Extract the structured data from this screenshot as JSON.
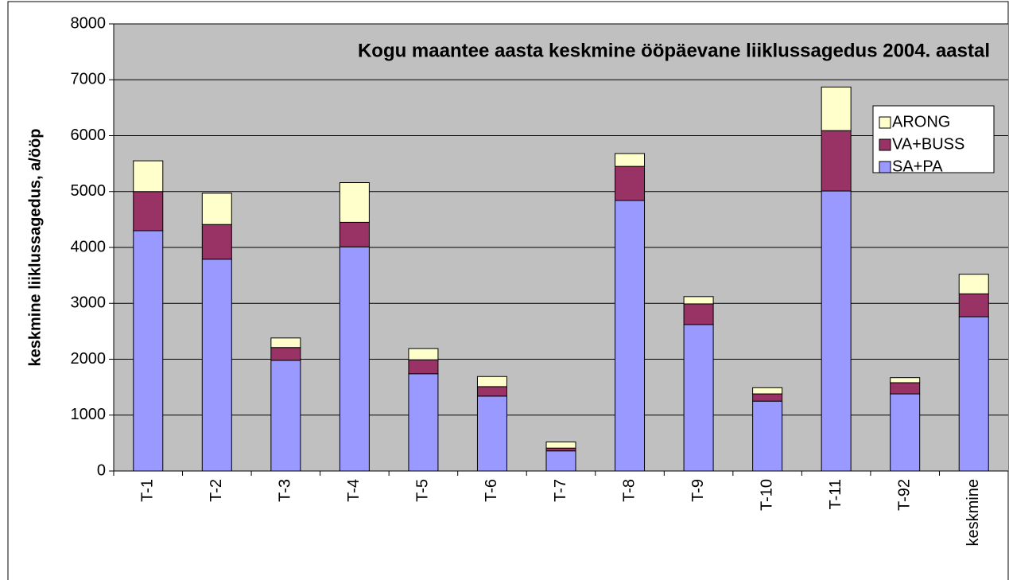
{
  "chart_data": {
    "type": "stacked_bar",
    "title": "Kogu maantee aasta keskmine ööpäevane liiklussagedus 2004. aastal",
    "y_label": "keskmine liiklussagedus, a/ööp",
    "categories": [
      "T-1",
      "T-2",
      "T-3",
      "T-4",
      "T-5",
      "T-6",
      "T-7",
      "T-8",
      "T-9",
      "T-10",
      "T-11",
      "T-92",
      "keskmine"
    ],
    "series": [
      {
        "name": "SA+PA",
        "color": "#9999ff",
        "values": [
          4300,
          3790,
          1980,
          4010,
          1740,
          1340,
          360,
          4840,
          2620,
          1250,
          5010,
          1380,
          2760
        ]
      },
      {
        "name": "VA+BUSS",
        "color": "#993366",
        "values": [
          700,
          620,
          230,
          440,
          250,
          170,
          50,
          610,
          370,
          130,
          1080,
          200,
          410
        ]
      },
      {
        "name": "ARONG",
        "color": "#ffffcc",
        "values": [
          550,
          560,
          170,
          710,
          200,
          180,
          110,
          230,
          130,
          110,
          780,
          90,
          350
        ]
      }
    ],
    "ylim": [
      0,
      8000
    ],
    "yticks": [
      0,
      1000,
      2000,
      3000,
      4000,
      5000,
      6000,
      7000,
      8000
    ],
    "grid": true,
    "legend": "upper right"
  }
}
